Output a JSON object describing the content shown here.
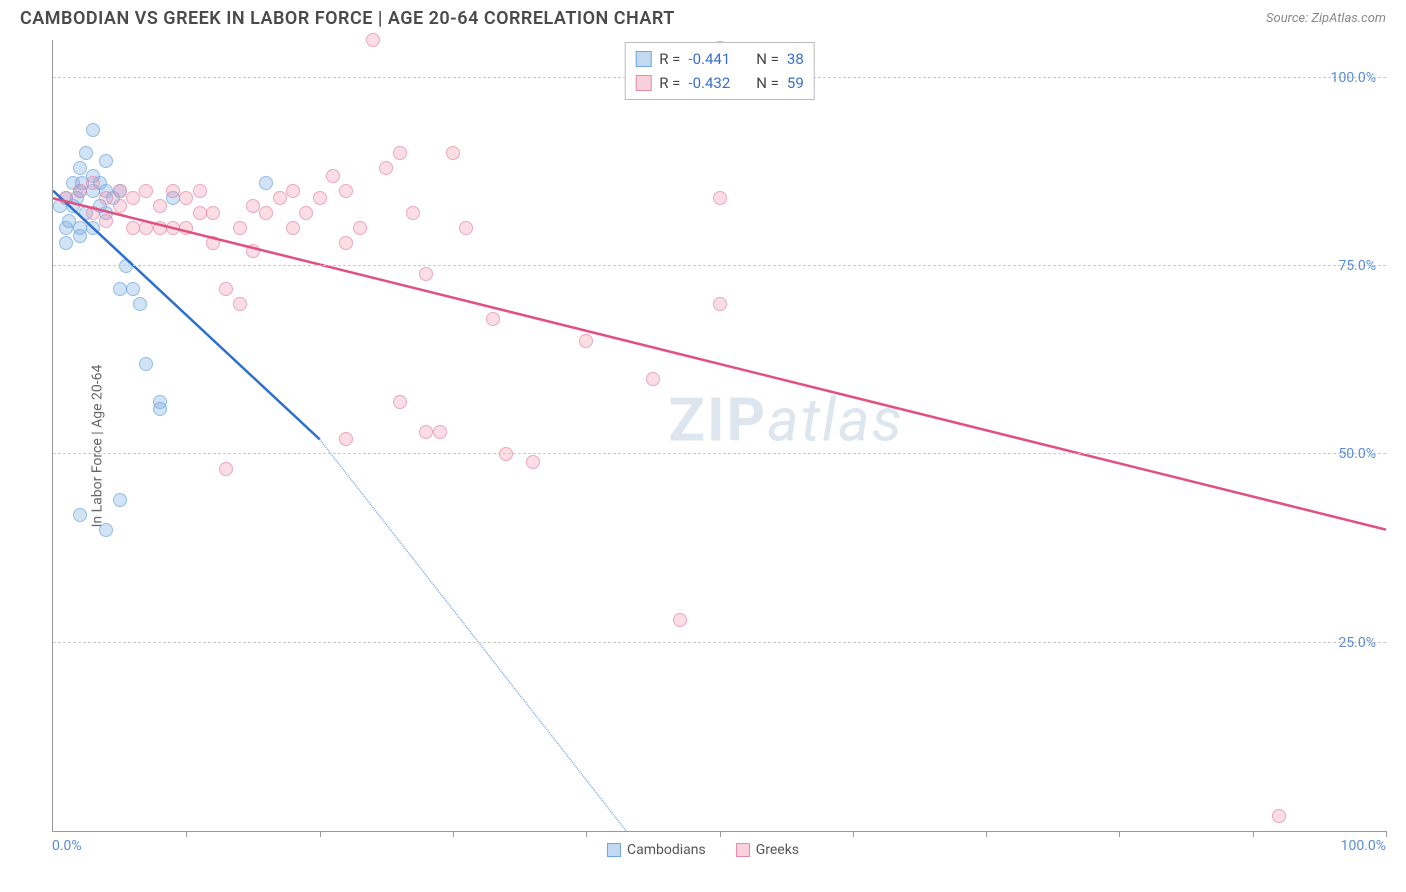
{
  "title": "CAMBODIAN VS GREEK IN LABOR FORCE | AGE 20-64 CORRELATION CHART",
  "source": "Source: ZipAtlas.com",
  "ylabel": "In Labor Force | Age 20-64",
  "watermark_a": "ZIP",
  "watermark_b": "atlas",
  "chart": {
    "type": "scatter-with-trend",
    "xlim": [
      0,
      100
    ],
    "ylim": [
      0,
      105
    ],
    "x_origin_label": "0.0%",
    "x_max_label": "100.0%",
    "y_gridlines": [
      25,
      50,
      75,
      100
    ],
    "y_tick_labels": [
      "25.0%",
      "50.0%",
      "75.0%",
      "100.0%"
    ],
    "x_ticks": [
      10,
      20,
      30,
      40,
      50,
      60,
      70,
      80,
      90,
      100
    ],
    "background_color": "#ffffff",
    "grid_color": "#cccccc",
    "axis_color": "#999999",
    "tick_label_color": "#5b8dd6"
  },
  "series": [
    {
      "name": "Cambodians",
      "color_fill": "rgba(120,170,225,0.45)",
      "color_stroke": "#6fa8e0",
      "trend_color": "#2b6fd0",
      "r": -0.441,
      "n": 38,
      "trend": {
        "x1": 0,
        "y1": 85,
        "x2_solid": 20,
        "y2_solid": 52,
        "x2_dash": 43,
        "y2_dash": 0
      },
      "points": [
        [
          1,
          84
        ],
        [
          1.5,
          86
        ],
        [
          2,
          88
        ],
        [
          2,
          85
        ],
        [
          2.5,
          90
        ],
        [
          3,
          93
        ],
        [
          3,
          87
        ],
        [
          3,
          85
        ],
        [
          3.5,
          86
        ],
        [
          4,
          89
        ],
        [
          4,
          85
        ],
        [
          4,
          82
        ],
        [
          5,
          72
        ],
        [
          5,
          85
        ],
        [
          5.5,
          75
        ],
        [
          6,
          72
        ],
        [
          6.5,
          70
        ],
        [
          7,
          62
        ],
        [
          8,
          57
        ],
        [
          8,
          56
        ],
        [
          9,
          84
        ],
        [
          2,
          42
        ],
        [
          4,
          40
        ],
        [
          5,
          44
        ],
        [
          1,
          80
        ],
        [
          2,
          80
        ],
        [
          3,
          80
        ],
        [
          16,
          86
        ],
        [
          1.5,
          83
        ],
        [
          2.5,
          82
        ],
        [
          3.5,
          83
        ],
        [
          4.5,
          84
        ],
        [
          1,
          78
        ],
        [
          2,
          79
        ],
        [
          0.5,
          83
        ],
        [
          1.2,
          81
        ],
        [
          1.8,
          84
        ],
        [
          2.2,
          86
        ]
      ]
    },
    {
      "name": "Greeks",
      "color_fill": "rgba(240,140,170,0.4)",
      "color_stroke": "#e88aa8",
      "trend_color": "#e05080",
      "r": -0.432,
      "n": 59,
      "trend": {
        "x1": 0,
        "y1": 84,
        "x2_solid": 100,
        "y2_solid": 40,
        "x2_dash": 100,
        "y2_dash": 40
      },
      "points": [
        [
          1,
          84
        ],
        [
          2,
          85
        ],
        [
          3,
          86
        ],
        [
          4,
          84
        ],
        [
          5,
          85
        ],
        [
          5,
          83
        ],
        [
          6,
          84
        ],
        [
          7,
          85
        ],
        [
          7,
          80
        ],
        [
          8,
          83
        ],
        [
          8,
          80
        ],
        [
          9,
          85
        ],
        [
          10,
          84
        ],
        [
          10,
          80
        ],
        [
          11,
          85
        ],
        [
          12,
          82
        ],
        [
          12,
          78
        ],
        [
          13,
          72
        ],
        [
          14,
          70
        ],
        [
          14,
          80
        ],
        [
          15,
          83
        ],
        [
          16,
          82
        ],
        [
          17,
          84
        ],
        [
          18,
          85
        ],
        [
          18,
          80
        ],
        [
          20,
          84
        ],
        [
          21,
          87
        ],
        [
          22,
          85
        ],
        [
          22,
          78
        ],
        [
          24,
          105
        ],
        [
          25,
          88
        ],
        [
          26,
          90
        ],
        [
          28,
          74
        ],
        [
          30,
          90
        ],
        [
          34,
          50
        ],
        [
          26,
          57
        ],
        [
          28,
          53
        ],
        [
          29,
          53
        ],
        [
          13,
          48
        ],
        [
          22,
          52
        ],
        [
          50,
          104
        ],
        [
          50,
          84
        ],
        [
          36,
          49
        ],
        [
          47,
          28
        ],
        [
          50,
          70
        ],
        [
          3,
          82
        ],
        [
          4,
          81
        ],
        [
          6,
          80
        ],
        [
          9,
          80
        ],
        [
          11,
          82
        ],
        [
          15,
          77
        ],
        [
          19,
          82
        ],
        [
          23,
          80
        ],
        [
          27,
          82
        ],
        [
          31,
          80
        ],
        [
          33,
          68
        ],
        [
          92,
          2
        ],
        [
          40,
          65
        ],
        [
          45,
          60
        ]
      ]
    }
  ],
  "legend": {
    "series1_label": "Cambodians",
    "series2_label": "Greeks"
  },
  "stats_labels": {
    "r": "R =",
    "n": "N ="
  }
}
